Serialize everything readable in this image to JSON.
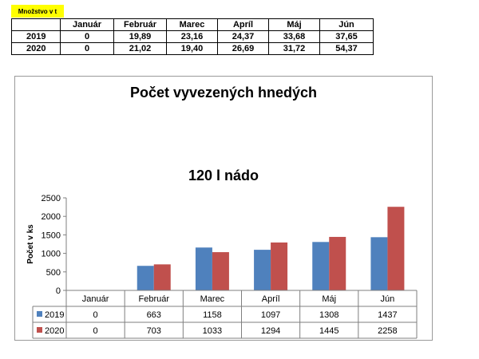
{
  "sheet": {
    "label": "Množstvo v t",
    "columns": [
      "",
      "Január",
      "Február",
      "Marec",
      "Apríl",
      "Máj",
      "Jún"
    ],
    "rows": [
      {
        "year": "2019",
        "cells": [
          "0",
          "19,89",
          "23,16",
          "24,37",
          "33,68",
          "37,65"
        ]
      },
      {
        "year": "2020",
        "cells": [
          "0",
          "21,02",
          "19,40",
          "26,69",
          "31,72",
          "54,37"
        ]
      }
    ]
  },
  "chart_data": {
    "type": "bar",
    "title": "Počet vyvezených hnedých",
    "subtitle": "120 l nádo",
    "ylabel": "Počet v ks",
    "xlabel": "",
    "ylim": [
      0,
      2500
    ],
    "yticks": [
      "0",
      "500",
      "1000",
      "1500",
      "2000",
      "2500"
    ],
    "categories": [
      "Január",
      "Február",
      "Marec",
      "Apríl",
      "Máj",
      "Jún"
    ],
    "series": [
      {
        "name": "2019",
        "color": "#4f81bd",
        "values": [
          0,
          663,
          1158,
          1097,
          1308,
          1437
        ]
      },
      {
        "name": "2020",
        "color": "#c0504d",
        "values": [
          0,
          703,
          1033,
          1294,
          1445,
          2258
        ]
      }
    ],
    "grid": false,
    "legend": "data-table"
  }
}
